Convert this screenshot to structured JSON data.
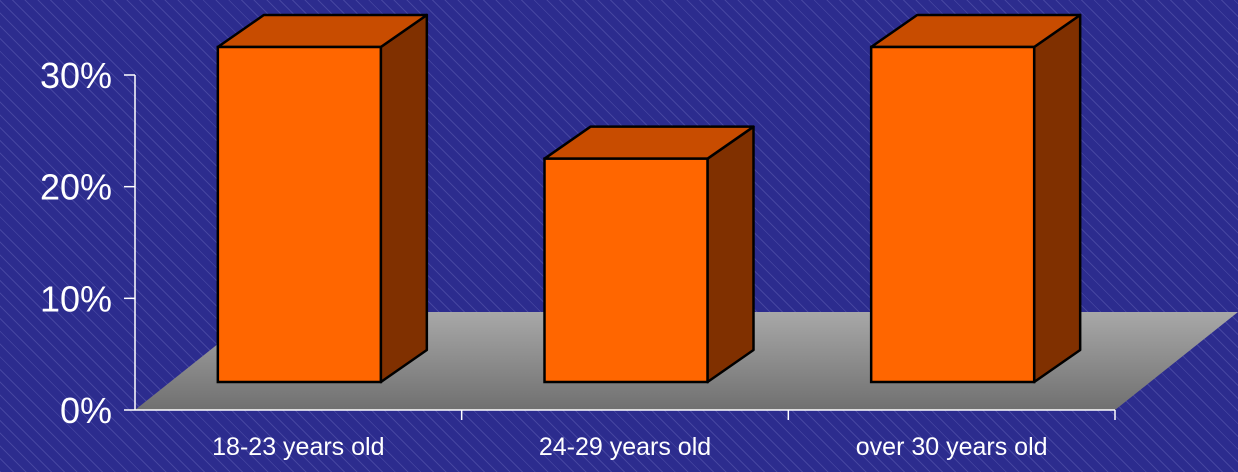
{
  "chart_data": {
    "type": "bar",
    "style": "3d",
    "categories": [
      "18-23 years old",
      "24-29 years old",
      "over 30 years old"
    ],
    "values": [
      30,
      20,
      30
    ],
    "yticks": [
      "0%",
      "10%",
      "20%",
      "30%"
    ],
    "ylim": [
      0,
      30
    ],
    "title": "",
    "xlabel": "",
    "ylabel": "",
    "grid": false,
    "colors": {
      "bar_front": "#ff6600",
      "bar_top": "#c84c00",
      "bar_side": "#803000",
      "floor": "#8c8c8c",
      "axis": "#ffffff",
      "background": "#2c2c8e"
    }
  }
}
